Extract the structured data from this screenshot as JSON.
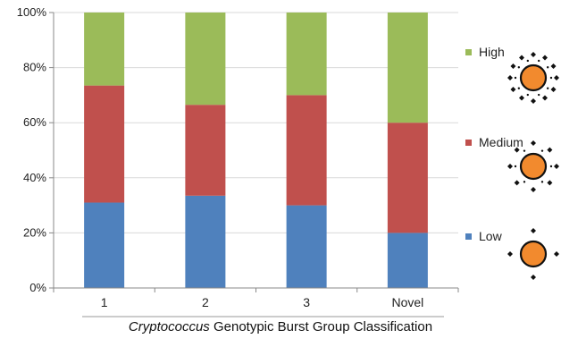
{
  "chart_data": {
    "type": "bar",
    "stacked": true,
    "categories": [
      "1",
      "2",
      "3",
      "Novel"
    ],
    "series": [
      {
        "name": "Low",
        "color": "#4f81bd",
        "values": [
          31,
          33.5,
          30,
          20
        ]
      },
      {
        "name": "Medium",
        "color": "#c0504d",
        "values": [
          42.5,
          33,
          40,
          40
        ]
      },
      {
        "name": "High",
        "color": "#9bbb59",
        "values": [
          26.5,
          33.5,
          30,
          40
        ]
      }
    ],
    "yticks": [
      "0%",
      "20%",
      "40%",
      "60%",
      "80%",
      "100%"
    ],
    "ylim": [
      0,
      100
    ],
    "xlabel_italic": "Cryptococcus",
    "xlabel_rest": " Genotypic Burst Group Classification",
    "legend_order": [
      "High",
      "Medium",
      "Low"
    ],
    "legend_placement": "right",
    "grid": true
  },
  "legend_icons": [
    "burst-high-icon",
    "burst-medium-icon",
    "burst-low-icon"
  ]
}
